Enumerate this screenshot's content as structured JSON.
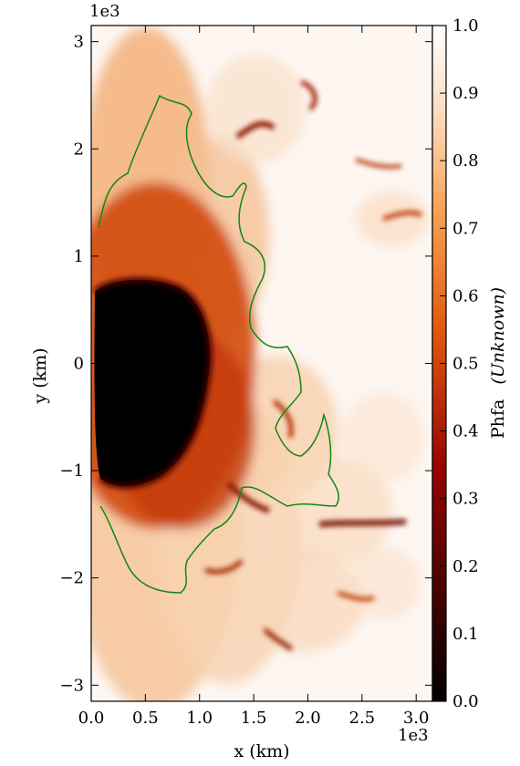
{
  "chart_data": {
    "type": "heatmap",
    "title": "",
    "xlabel": "x  (km)",
    "ylabel": "y  (km)",
    "x_offset_label": "1e3",
    "y_offset_label": "1e3",
    "xlim": [
      0,
      3.15
    ],
    "ylim": [
      -3.15,
      3.15
    ],
    "x_ticks": [
      0.0,
      0.5,
      1.0,
      1.5,
      2.0,
      2.5,
      3.0
    ],
    "x_tick_labels": [
      "0.0",
      "0.5",
      "1.0",
      "1.5",
      "2.0",
      "2.5",
      "3.0"
    ],
    "y_ticks": [
      -3,
      -2,
      -1,
      0,
      1,
      2,
      3
    ],
    "y_tick_labels": [
      "−3",
      "−2",
      "−1",
      "0",
      "1",
      "2",
      "3"
    ],
    "colormap": "gist_heat",
    "colorbar": {
      "label_main": "Phfa",
      "label_unit": "(Unknown)",
      "range": [
        0.0,
        1.0
      ],
      "ticks": [
        0.0,
        0.1,
        0.2,
        0.3,
        0.4,
        0.5,
        0.6,
        0.7,
        0.8,
        0.9,
        1.0
      ],
      "tick_labels": [
        "0.0",
        "0.1",
        "0.2",
        "0.3",
        "0.4",
        "0.5",
        "0.6",
        "0.7",
        "0.8",
        "0.9",
        "1.0"
      ]
    },
    "contour_color": "#118811",
    "grid": false
  }
}
